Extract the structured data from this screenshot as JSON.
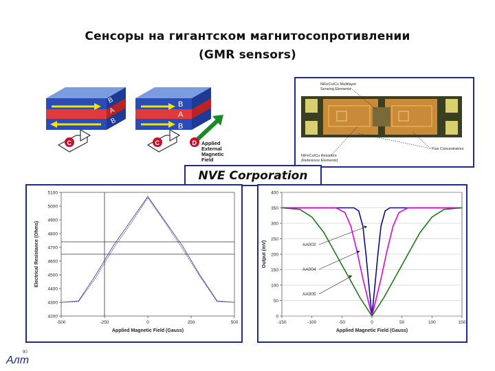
{
  "slide": {
    "title_line1": "Сенсоры на гигантском магнитосопротивлении",
    "title_line2": "(GMR sensors)",
    "company": "NVE Corporation",
    "accent_color": "#1d2a8a"
  },
  "layers_figure": {
    "stack1_letters": [
      "B",
      "A",
      "B"
    ],
    "stack2_letters": [
      "B",
      "A",
      "B"
    ],
    "marker_c": "C",
    "marker_d": "D",
    "field_label_lines": [
      "Applied",
      "External",
      "Magnetic",
      "Field"
    ]
  },
  "micrograph": {
    "label_top": [
      "NiFeCo/Cu Multilayer",
      "Sensing Elements"
    ],
    "label_bottom": [
      "NiFeCo/Cu Resistors",
      "(Reference Elements)"
    ],
    "label_right": "Flux Concentrators"
  },
  "chart_data": [
    {
      "type": "line",
      "xlabel": "Applied Magnetic Field (Gauss)",
      "ylabel": "Electrical Resistance (Ohms)",
      "xlim": [
        -500,
        500
      ],
      "ylim": [
        4200,
        5100
      ],
      "xticks": [
        "-500",
        "-250",
        "0",
        "250",
        "500"
      ],
      "yticks": [
        "4200",
        "4300",
        "4400",
        "4500",
        "4600",
        "4700",
        "4800",
        "4900",
        "5000",
        "5100"
      ],
      "reference_lines": {
        "x": [
          -250
        ],
        "y": [
          4650,
          4740
        ]
      },
      "series": [
        {
          "x": [
            -500,
            -400,
            -300,
            -200,
            -100,
            0,
            100,
            200,
            300,
            400,
            500
          ],
          "y": [
            4300,
            4310,
            4500,
            4710,
            4890,
            5070,
            4890,
            4710,
            4500,
            4310,
            4300
          ]
        },
        {
          "x": [
            -500,
            -400,
            -300,
            -200,
            -100,
            0,
            100,
            200,
            300,
            400,
            500
          ],
          "y": [
            4300,
            4305,
            4480,
            4690,
            4870,
            5060,
            4880,
            4690,
            4490,
            4305,
            4300
          ]
        }
      ]
    },
    {
      "type": "line",
      "xlabel": "Applied Magnetic Field (Gauss)",
      "ylabel": "Output (mV)",
      "xlim": [
        -150,
        150
      ],
      "ylim": [
        0,
        400
      ],
      "xticks": [
        "-150",
        "-100",
        "-50",
        "0",
        "50",
        "100",
        "150"
      ],
      "yticks": [
        "0",
        "50",
        "100",
        "150",
        "200",
        "250",
        "300",
        "350",
        "400"
      ],
      "series": [
        {
          "name": "AA002",
          "color": "#0a0a8a",
          "x": [
            -150,
            -30,
            -22,
            -15,
            -10,
            -5,
            0,
            5,
            10,
            15,
            22,
            30,
            150
          ],
          "y": [
            350,
            350,
            340,
            290,
            200,
            100,
            0,
            100,
            200,
            290,
            340,
            350,
            350
          ]
        },
        {
          "name": "AA004",
          "color": "#e000e0",
          "x": [
            -150,
            -60,
            -45,
            -35,
            -25,
            -15,
            0,
            15,
            25,
            35,
            45,
            60,
            150
          ],
          "y": [
            350,
            350,
            335,
            290,
            210,
            120,
            0,
            120,
            210,
            290,
            335,
            350,
            350
          ]
        },
        {
          "name": "AA005",
          "color": "#1a7a1a",
          "x": [
            -150,
            -120,
            -100,
            -80,
            -60,
            -40,
            -20,
            0,
            20,
            40,
            60,
            80,
            100,
            120,
            150
          ],
          "y": [
            350,
            345,
            320,
            270,
            200,
            130,
            60,
            0,
            60,
            130,
            200,
            270,
            320,
            345,
            350
          ]
        }
      ]
    }
  ],
  "logo": {
    "letters": "Aлт",
    "sup": "90"
  }
}
